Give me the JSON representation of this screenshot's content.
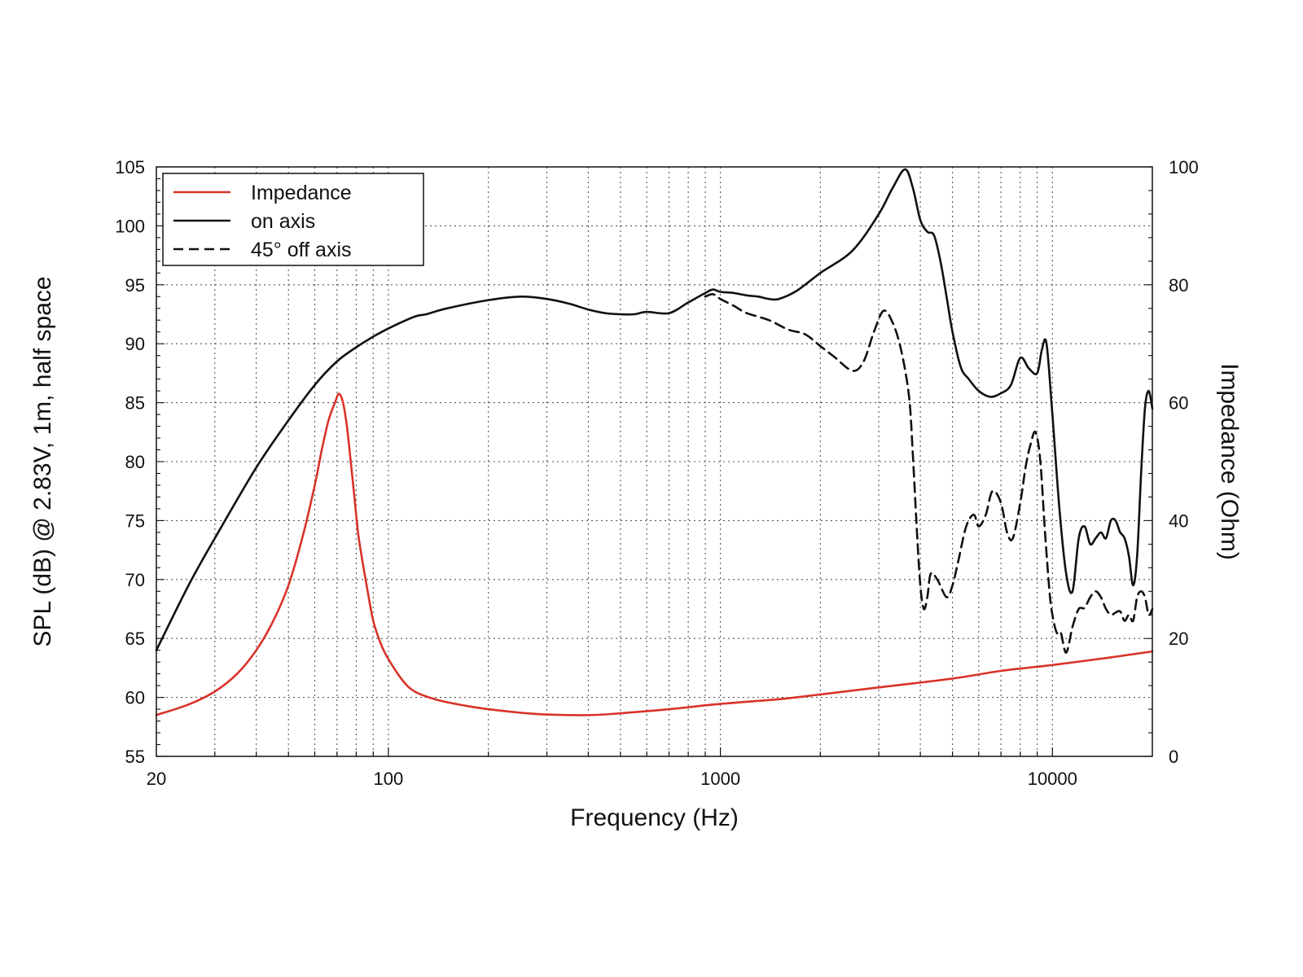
{
  "chart_data": {
    "type": "line",
    "xscale": "log",
    "xlim": [
      20,
      20000
    ],
    "ylim": [
      55,
      105
    ],
    "y2lim": [
      0,
      100
    ],
    "xlabel": "Frequency (Hz)",
    "ylabel": "SPL (dB) @ 2.83V, 1m, half space",
    "y2label": "Impedance (Ohm)",
    "grid": true,
    "legend_position": "top-left",
    "xticks": [
      20,
      100,
      1000,
      10000
    ],
    "xtick_labels": [
      "20",
      "100",
      "1000",
      "10000"
    ],
    "yticks": [
      55,
      60,
      65,
      70,
      75,
      80,
      85,
      90,
      95,
      100,
      105
    ],
    "ytick_labels": [
      "55",
      "60",
      "65",
      "70",
      "75",
      "80",
      "85",
      "90",
      "95",
      "100",
      "105"
    ],
    "y2ticks": [
      0,
      20,
      40,
      60,
      80,
      100
    ],
    "y2tick_labels": [
      "0",
      "20",
      "40",
      "60",
      "80",
      "100"
    ],
    "series": [
      {
        "name": "Impedance",
        "axis": "right",
        "color": "#d8332a",
        "style": "solid",
        "x": [
          20,
          25,
          30,
          35,
          40,
          45,
          50,
          55,
          60,
          63,
          66,
          69,
          71,
          73,
          75,
          77,
          79,
          81,
          83,
          86,
          90,
          95,
          100,
          110,
          120,
          140,
          170,
          200,
          250,
          300,
          400,
          500,
          700,
          1000,
          1500,
          2000,
          3000,
          5000,
          7000,
          10000,
          15000,
          20000
        ],
        "values": [
          7,
          8.8,
          11,
          14,
          18,
          23,
          29,
          37,
          46,
          52,
          57,
          60,
          61.5,
          60,
          56,
          50,
          44,
          38,
          34,
          29,
          23,
          19,
          16.5,
          13,
          11,
          9.6,
          8.6,
          8.0,
          7.4,
          7.1,
          7.0,
          7.3,
          8.0,
          8.9,
          9.7,
          10.5,
          11.7,
          13.2,
          14.5,
          15.5,
          16.8,
          17.8
        ]
      },
      {
        "name": "on axis",
        "axis": "left",
        "color": "#111111",
        "style": "solid",
        "x": [
          20,
          25,
          30,
          40,
          50,
          60,
          70,
          80,
          90,
          100,
          120,
          130,
          150,
          200,
          250,
          300,
          350,
          400,
          450,
          500,
          550,
          600,
          700,
          800,
          900,
          950,
          1000,
          1100,
          1200,
          1300,
          1400,
          1500,
          1700,
          2000,
          2500,
          3000,
          3300,
          3600,
          3800,
          4000,
          4200,
          4400,
          4600,
          4800,
          5000,
          5300,
          5600,
          6000,
          6500,
          7000,
          7500,
          8000,
          8500,
          9000,
          9300,
          9600,
          10000,
          10500,
          11000,
          11500,
          12000,
          12500,
          13000,
          13500,
          14000,
          14500,
          15000,
          15500,
          16000,
          16500,
          17000,
          17500,
          18000,
          18500,
          19000,
          19500,
          20000
        ],
        "values": [
          64,
          69.5,
          73.5,
          79.5,
          83.5,
          86.5,
          88.5,
          89.7,
          90.6,
          91.3,
          92.3,
          92.5,
          93,
          93.7,
          94,
          93.8,
          93.4,
          92.9,
          92.6,
          92.5,
          92.5,
          92.7,
          92.6,
          93.5,
          94.3,
          94.6,
          94.4,
          94.3,
          94.1,
          94,
          93.8,
          93.8,
          94.5,
          96,
          97.9,
          101,
          103.2,
          104.8,
          103.2,
          100.5,
          99.5,
          99.2,
          97,
          94,
          91,
          88,
          87,
          86,
          85.5,
          85.8,
          86.5,
          88.8,
          87.9,
          87.5,
          89.5,
          90,
          84,
          76,
          70.5,
          69,
          73.5,
          74.5,
          73,
          73.5,
          74,
          73.5,
          75,
          75,
          74,
          73.5,
          72,
          69.5,
          72,
          79,
          84.5,
          86,
          84.5
        ]
      },
      {
        "name": "45° off axis",
        "axis": "left",
        "color": "#111111",
        "style": "dashed",
        "x": [
          900,
          950,
          1000,
          1100,
          1200,
          1400,
          1600,
          1800,
          2000,
          2200,
          2500,
          2700,
          2900,
          3100,
          3300,
          3500,
          3700,
          3800,
          3900,
          4000,
          4100,
          4200,
          4300,
          4500,
          4800,
          5000,
          5200,
          5500,
          5800,
          6000,
          6300,
          6600,
          7000,
          7300,
          7600,
          8000,
          8300,
          8600,
          8900,
          9200,
          9500,
          9800,
          10000,
          10300,
          10600,
          11000,
          11500,
          12000,
          12500,
          13000,
          13500,
          14000,
          14500,
          15000,
          15500,
          16000,
          16500,
          17000,
          17500,
          18000,
          18500,
          19000,
          19500,
          20000
        ],
        "values": [
          94,
          94.2,
          93.8,
          93.2,
          92.6,
          92,
          91.2,
          90.8,
          89.8,
          88.9,
          87.7,
          88.5,
          91,
          92.8,
          91.8,
          89.5,
          85.5,
          80.5,
          74.5,
          69.5,
          67.5,
          68.5,
          70.5,
          70,
          68.5,
          69.5,
          71.5,
          74.5,
          75.5,
          74.5,
          75.5,
          77.5,
          76.5,
          74,
          73.5,
          76.5,
          79.5,
          81.5,
          82.5,
          80,
          74,
          69,
          67,
          65.5,
          65.5,
          63.8,
          66,
          67.5,
          67.6,
          68.5,
          69,
          68.5,
          67.5,
          67,
          67.2,
          67.3,
          66.5,
          67,
          66.5,
          68.5,
          69,
          68.5,
          67,
          67.5
        ]
      }
    ]
  }
}
